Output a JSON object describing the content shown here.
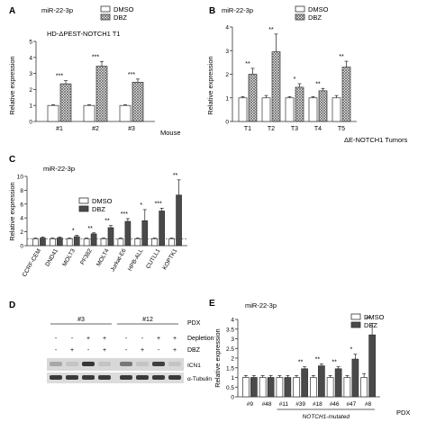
{
  "figure": {
    "panel_labels": [
      "A",
      "B",
      "C",
      "D",
      "E"
    ],
    "legend_dmso": "DMSO",
    "legend_dbz": "DBZ",
    "ylabel": "Relative expression"
  },
  "colors": {
    "dmso": "#ffffff",
    "dbz_hatch": "#707070",
    "dbz_dark": "#4a4a4a",
    "axis": "#333333"
  },
  "chart_data": [
    {
      "panel": "A",
      "type": "bar",
      "title": "miR-22-3p",
      "subtitle": "HD-ΔPEST-NOTCH1 T1",
      "ylabel": "Relative expression",
      "xlabel": "Mouse",
      "ylim": [
        0,
        5
      ],
      "yticks": [
        0,
        1,
        2,
        3,
        4,
        5
      ],
      "categories": [
        "#1",
        "#2",
        "#3"
      ],
      "significance": [
        "***",
        "***",
        "***"
      ],
      "series": [
        {
          "name": "DMSO",
          "values": [
            1.0,
            1.0,
            1.0
          ],
          "errors": [
            0.05,
            0.05,
            0.05
          ]
        },
        {
          "name": "DBZ",
          "values": [
            2.35,
            3.45,
            2.45
          ],
          "errors": [
            0.2,
            0.3,
            0.2
          ]
        }
      ]
    },
    {
      "panel": "B",
      "type": "bar",
      "title": "miR-22-3p",
      "ylabel": "Relative expression",
      "xlabel": "ΔE-NOTCH1 Tumors",
      "ylim": [
        0,
        4
      ],
      "yticks": [
        0,
        1,
        2,
        3,
        4
      ],
      "categories": [
        "T1",
        "T2",
        "T3",
        "T4",
        "T5"
      ],
      "significance": [
        "**",
        "**",
        "*",
        "**",
        "**"
      ],
      "series": [
        {
          "name": "DMSO",
          "values": [
            1.0,
            1.0,
            1.0,
            1.0,
            1.0
          ],
          "errors": [
            0.05,
            0.1,
            0.05,
            0.05,
            0.1
          ]
        },
        {
          "name": "DBZ",
          "values": [
            2.0,
            2.95,
            1.45,
            1.3,
            2.3
          ],
          "errors": [
            0.25,
            0.75,
            0.15,
            0.1,
            0.25
          ]
        }
      ]
    },
    {
      "panel": "C",
      "type": "bar",
      "title": "miR-22-3p",
      "ylabel": "Relative expression",
      "ylim": [
        0,
        10
      ],
      "yticks": [
        0,
        2,
        4,
        6,
        8,
        10
      ],
      "categories": [
        "CCRF-CEM",
        "DND41",
        "MOLT3",
        "PF382",
        "MOLT4",
        "Jurkat-E6",
        "HPB-ALL",
        "CUTLL1",
        "KOPTK1"
      ],
      "significance": [
        "",
        "",
        "*",
        "**",
        "**",
        "***",
        "*",
        "***",
        "**"
      ],
      "series": [
        {
          "name": "DMSO",
          "values": [
            1,
            1,
            1,
            1,
            1,
            1,
            1,
            1,
            1
          ],
          "errors": [
            0.1,
            0.1,
            0.1,
            0.1,
            0.1,
            0.1,
            0.1,
            0.1,
            0.1
          ]
        },
        {
          "name": "DBZ",
          "values": [
            1.1,
            1.1,
            1.3,
            1.7,
            2.6,
            3.5,
            3.6,
            5.0,
            7.3
          ],
          "errors": [
            0.15,
            0.15,
            0.2,
            0.15,
            0.3,
            0.4,
            1.6,
            0.4,
            2.2
          ]
        }
      ]
    },
    {
      "panel": "E",
      "type": "bar",
      "title": "miR-22-3p",
      "ylabel": "Relative expression",
      "xlabel": "PDX",
      "ylim": [
        0,
        4
      ],
      "yticks": [
        0,
        0.5,
        1,
        1.5,
        2,
        2.5,
        3,
        3.5,
        4
      ],
      "categories": [
        "#9",
        "#48",
        "#11",
        "#39",
        "#18",
        "#46",
        "#47",
        "#8"
      ],
      "bracket_label": "NOTCH1-mutated",
      "significance": [
        "",
        "",
        "",
        "**",
        "**",
        "**",
        "*",
        "**"
      ],
      "series": [
        {
          "name": "DMSO",
          "values": [
            1,
            1,
            1,
            1,
            1,
            1,
            1,
            1
          ],
          "errors": [
            0.1,
            0.1,
            0.1,
            0.1,
            0.1,
            0.1,
            0.1,
            0.2
          ]
        },
        {
          "name": "DBZ",
          "values": [
            1.0,
            1.0,
            1.0,
            1.45,
            1.6,
            1.45,
            1.95,
            3.2
          ],
          "errors": [
            0.1,
            0.1,
            0.1,
            0.1,
            0.1,
            0.1,
            0.25,
            0.6
          ]
        }
      ]
    }
  ],
  "blot": {
    "panel": "D",
    "groups": [
      "#3",
      "#12"
    ],
    "group_label": "PDX",
    "rows": [
      {
        "label": "Depletion",
        "marks": [
          "-",
          "-",
          "+",
          "+",
          "-",
          "-",
          "+",
          "+"
        ]
      },
      {
        "label": "DBZ",
        "marks": [
          "-",
          "+",
          "-",
          "+",
          "-",
          "+",
          "-",
          "+"
        ]
      }
    ],
    "bands": [
      "ICN1",
      "α-Tubulin"
    ],
    "icn1_intensity": [
      0.25,
      0.1,
      0.85,
      0.1,
      0.5,
      0.1,
      0.8,
      0.1
    ]
  }
}
